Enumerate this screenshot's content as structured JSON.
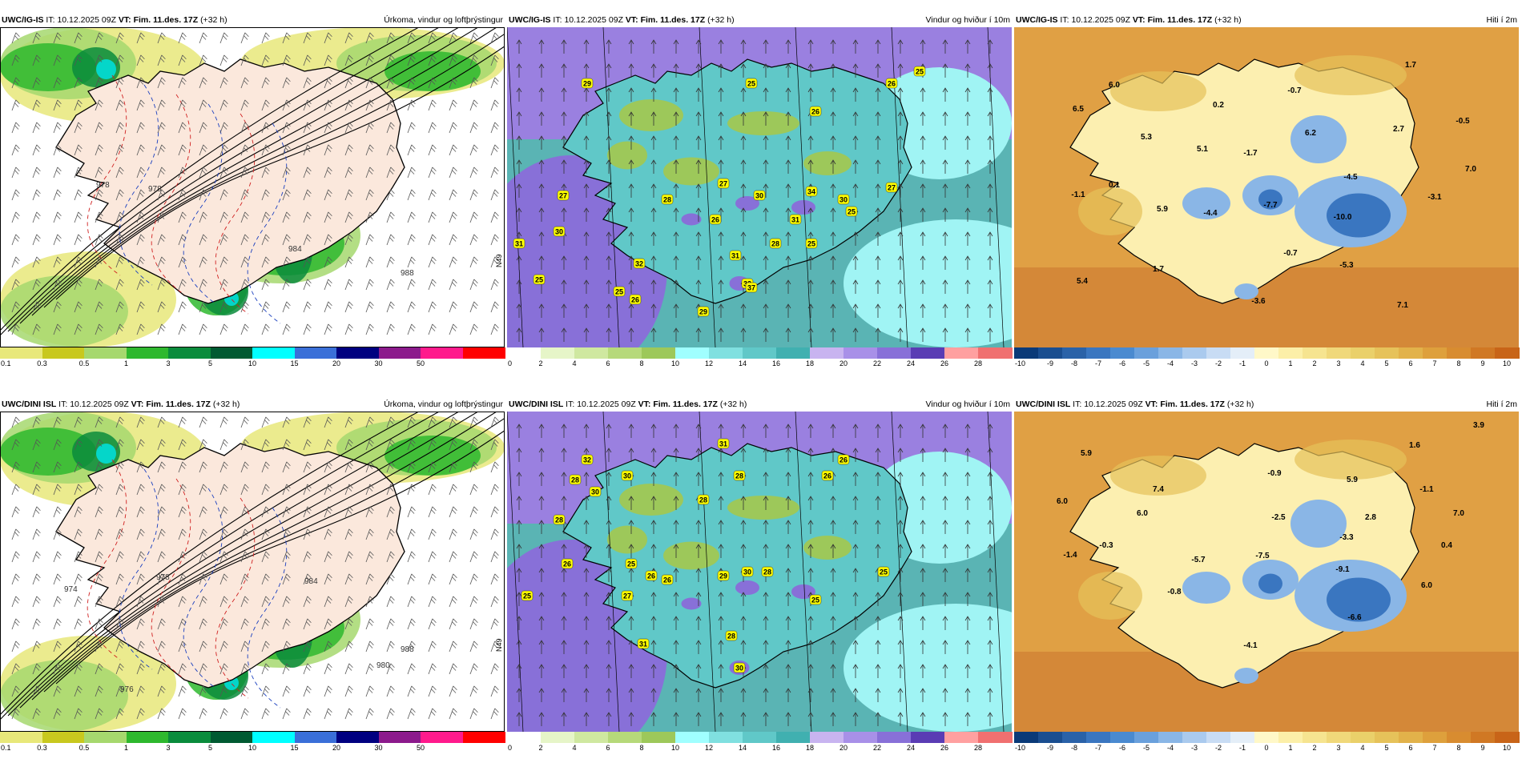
{
  "panels": [
    {
      "id": "p1",
      "model": "UWC/IG-IS",
      "it_label": "IT:",
      "it": "10.12.2025 09Z",
      "vt_label": "VT:",
      "vt": "Fim. 11.des. 17Z",
      "lead": "(+32 h)",
      "title": "Úrkoma, vindur og loftþrýstingur",
      "kind": "precip",
      "side_label": "N49",
      "isobar_labels": [
        "978",
        "978",
        "988",
        "984"
      ],
      "cbar_labels": [
        "0.1",
        "0.3",
        "0.5",
        "1",
        "3",
        "5",
        "10",
        "15",
        "20",
        "30",
        "50"
      ],
      "cbar_colors": [
        "#e8e87a",
        "#c8c81e",
        "#a6d86e",
        "#2eb82e",
        "#0a8c3c",
        "#005a32",
        "#00ffff",
        "#3a6fd8",
        "#000080",
        "#8c1a8c",
        "#ff1a8c",
        "#ff0000"
      ]
    },
    {
      "id": "p2",
      "model": "UWC/IG-IS",
      "it_label": "IT:",
      "it": "10.12.2025 09Z",
      "vt_label": "VT:",
      "vt": "Fim. 11.des. 17Z",
      "lead": "(+32 h)",
      "title": "Vindur og hviður í 10m",
      "kind": "wind",
      "gust_labels": [
        "29",
        "25",
        "26",
        "26",
        "25",
        "27",
        "27",
        "30",
        "34",
        "30",
        "27",
        "28",
        "26",
        "31",
        "25",
        "28",
        "31",
        "32",
        "32",
        "37",
        "29",
        "31",
        "30",
        "25",
        "26",
        "25",
        "25"
      ],
      "cbar_labels": [
        "0",
        "2",
        "4",
        "6",
        "8",
        "10",
        "12",
        "14",
        "16",
        "18",
        "20",
        "22",
        "24",
        "26",
        "28"
      ],
      "cbar_colors": [
        "#ffffff",
        "#e6f5c8",
        "#cfe8a0",
        "#b6d97a",
        "#9dc85a",
        "#a0ffff",
        "#80e0e0",
        "#60c8c8",
        "#40b0b0",
        "#c8b4f0",
        "#a890e8",
        "#8870d8",
        "#5a3cb4",
        "#ffa0a0",
        "#f07070"
      ]
    },
    {
      "id": "p3",
      "model": "UWC/IG-IS",
      "it_label": "IT:",
      "it": "10.12.2025 09Z",
      "vt_label": "VT:",
      "vt": "Fim. 11.des. 17Z",
      "lead": "(+32 h)",
      "title": "Hiti í 2m",
      "kind": "temp",
      "temp_labels": [
        "6.0",
        "6.5",
        "5.3",
        "0.2",
        "-0.7",
        "1.7",
        "-0.5",
        "2.7",
        "6.2",
        "5.1",
        "-1.7",
        "-4.5",
        "7.0",
        "0.1",
        "-1.1",
        "5.9",
        "-4.4",
        "-7.7",
        "-10.0",
        "-3.1",
        "-0.7",
        "1.7",
        "5.4",
        "-3.6",
        "-5.3",
        "7.1"
      ],
      "cbar_labels": [
        "-10",
        "-9",
        "-8",
        "-7",
        "-6",
        "-5",
        "-4",
        "-3",
        "-2",
        "-1",
        "0",
        "1",
        "2",
        "3",
        "4",
        "5",
        "6",
        "7",
        "8",
        "9",
        "10"
      ],
      "cbar_colors": [
        "#0a3a78",
        "#1a4e90",
        "#2a62a8",
        "#3a76c0",
        "#4a8ad0",
        "#6aa0dc",
        "#8ab6e6",
        "#aacaee",
        "#c8dcf4",
        "#e4eef8",
        "#fff8c8",
        "#fcefa8",
        "#f6e490",
        "#f0d87a",
        "#ead06a",
        "#e6c25a",
        "#e2b24a",
        "#dea03c",
        "#d88c30",
        "#d07824",
        "#c86418"
      ]
    },
    {
      "id": "p4",
      "model": "UWC/DINI ISL",
      "it_label": "IT:",
      "it": "10.12.2025 09Z",
      "vt_label": "VT:",
      "vt": "Fim. 11.des. 17Z",
      "lead": "(+32 h)",
      "title": "Úrkoma, vindur og loftþrýstingur",
      "kind": "precip",
      "side_label": "N49",
      "isobar_labels": [
        "978",
        "984",
        "974",
        "988",
        "980",
        "976"
      ],
      "cbar_labels": [
        "0.1",
        "0.3",
        "0.5",
        "1",
        "3",
        "5",
        "10",
        "15",
        "20",
        "30",
        "50"
      ],
      "cbar_colors": [
        "#e8e87a",
        "#c8c81e",
        "#a6d86e",
        "#2eb82e",
        "#0a8c3c",
        "#005a32",
        "#00ffff",
        "#3a6fd8",
        "#000080",
        "#8c1a8c",
        "#ff1a8c",
        "#ff0000"
      ]
    },
    {
      "id": "p5",
      "model": "UWC/DINI ISL",
      "it_label": "IT:",
      "it": "10.12.2025 09Z",
      "vt_label": "VT:",
      "vt": "Fim. 11.des. 17Z",
      "lead": "(+32 h)",
      "title": "Vindur og hviður í 10m",
      "kind": "wind",
      "gust_labels": [
        "32",
        "28",
        "30",
        "30",
        "31",
        "28",
        "26",
        "26",
        "28",
        "28",
        "26",
        "25",
        "26",
        "29",
        "30",
        "28",
        "27",
        "25",
        "25",
        "31",
        "28",
        "30",
        "26",
        "25"
      ],
      "cbar_labels": [
        "0",
        "2",
        "4",
        "6",
        "8",
        "10",
        "12",
        "14",
        "16",
        "18",
        "20",
        "22",
        "24",
        "26",
        "28"
      ],
      "cbar_colors": [
        "#ffffff",
        "#e6f5c8",
        "#cfe8a0",
        "#b6d97a",
        "#9dc85a",
        "#a0ffff",
        "#80e0e0",
        "#60c8c8",
        "#40b0b0",
        "#c8b4f0",
        "#a890e8",
        "#8870d8",
        "#5a3cb4",
        "#ffa0a0",
        "#f07070"
      ]
    },
    {
      "id": "p6",
      "model": "UWC/DINI ISL",
      "it_label": "IT:",
      "it": "10.12.2025 09Z",
      "vt_label": "VT:",
      "vt": "Fim. 11.des. 17Z",
      "lead": "(+32 h)",
      "title": "Hiti í 2m",
      "kind": "temp",
      "temp_labels": [
        "3.9",
        "5.9",
        "1.6",
        "-0.9",
        "5.9",
        "6.0",
        "7.4",
        "-1.1",
        "6.0",
        "-2.5",
        "2.8",
        "7.0",
        "-0.3",
        "-1.4",
        "-3.3",
        "0.4",
        "-5.7",
        "-7.5",
        "-9.1",
        "6.0",
        "-0.8",
        "-6.6",
        "-4.1"
      ],
      "cbar_labels": [
        "-10",
        "-9",
        "-8",
        "-7",
        "-6",
        "-5",
        "-4",
        "-3",
        "-2",
        "-1",
        "0",
        "1",
        "2",
        "3",
        "4",
        "5",
        "6",
        "7",
        "8",
        "9",
        "10"
      ],
      "cbar_colors": [
        "#0a3a78",
        "#1a4e90",
        "#2a62a8",
        "#3a76c0",
        "#4a8ad0",
        "#6aa0dc",
        "#8ab6e6",
        "#aacaee",
        "#c8dcf4",
        "#e4eef8",
        "#fff8c8",
        "#fcefa8",
        "#f6e490",
        "#f0d87a",
        "#ead06a",
        "#e6c25a",
        "#e2b24a",
        "#dea03c",
        "#d88c30",
        "#d07824",
        "#c86418"
      ]
    }
  ]
}
